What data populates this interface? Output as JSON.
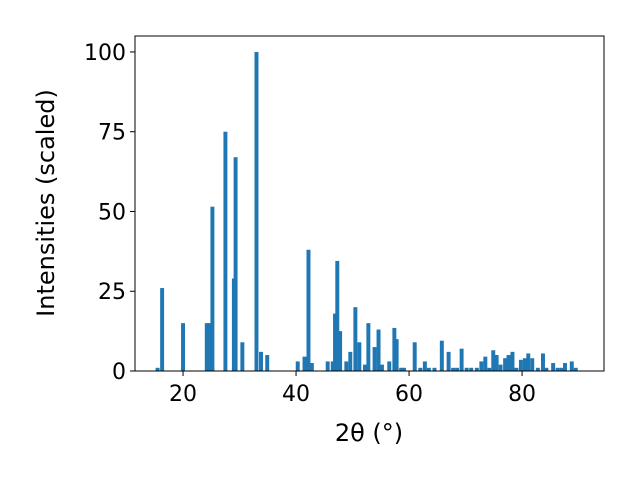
{
  "chart_data": {
    "type": "bar",
    "xlabel": "2θ (°)",
    "ylabel": "Intensities (scaled)",
    "xlim": [
      11.5,
      94.5
    ],
    "ylim": [
      0,
      105
    ],
    "bar_color": "#1f77b4",
    "bar_width": 0.7,
    "grid": false,
    "x_ticks": [
      20,
      40,
      60,
      80
    ],
    "y_ticks": [
      0,
      25,
      50,
      75,
      100
    ],
    "x": [
      15.5,
      16.3,
      20.0,
      24.2,
      24.6,
      25.2,
      27.5,
      29.0,
      29.3,
      30.5,
      33.0,
      33.8,
      34.9,
      40.3,
      41.5,
      42.2,
      42.8,
      45.6,
      46.5,
      46.9,
      47.3,
      47.8,
      48.9,
      49.6,
      50.5,
      51.2,
      52.2,
      52.8,
      53.9,
      54.6,
      55.2,
      56.5,
      57.4,
      57.8,
      58.6,
      59.1,
      61.0,
      62.0,
      62.8,
      63.5,
      64.5,
      65.8,
      67.0,
      67.8,
      68.5,
      69.3,
      70.2,
      71.0,
      72.0,
      72.8,
      73.5,
      74.2,
      74.9,
      75.5,
      76.2,
      77.0,
      77.6,
      78.3,
      79.0,
      79.8,
      80.5,
      81.1,
      81.8,
      82.8,
      83.7,
      84.3,
      85.5,
      86.3,
      87.0,
      87.6,
      88.8,
      89.5
    ],
    "values": [
      1,
      26,
      15,
      15,
      15,
      51.5,
      75,
      29,
      67,
      9,
      100,
      6,
      5,
      3,
      4.5,
      38,
      2.5,
      3,
      3,
      18,
      34.5,
      12.5,
      3,
      6,
      20,
      9,
      2,
      15,
      7.5,
      13,
      2,
      3,
      13.5,
      10,
      1,
      1,
      9,
      1,
      3,
      1,
      1,
      9.5,
      6,
      1,
      1,
      7,
      1,
      1,
      1,
      3,
      4.5,
      1,
      6.5,
      5,
      2,
      4,
      5,
      6,
      1,
      3.5,
      4,
      5.5,
      4,
      1,
      5.5,
      1,
      2.5,
      1,
      1,
      2.5,
      3,
      1
    ]
  }
}
